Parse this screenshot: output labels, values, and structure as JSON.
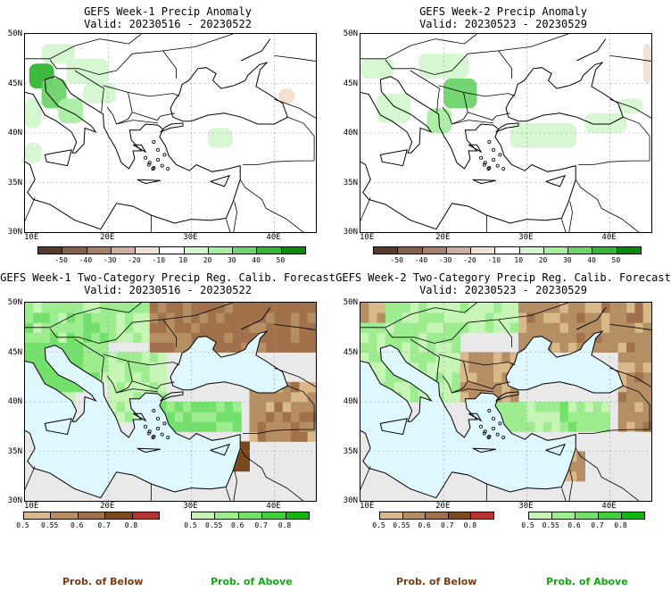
{
  "chart_data": [
    {
      "type": "heatmap",
      "title": "GEFS Week-1 Precip Anomaly",
      "subtitle": "Valid: 20230516 - 20230522",
      "x_ticks": [
        "10E",
        "20E",
        "30E",
        "40E"
      ],
      "y_ticks": [
        "50N",
        "45N",
        "40N",
        "35N",
        "30N"
      ],
      "xlim": [
        10,
        45
      ],
      "ylim": [
        30,
        50
      ],
      "colorbar_ticks": [
        "-50",
        "-40",
        "-30",
        "-20",
        "-10",
        "10",
        "20",
        "30",
        "40",
        "50"
      ],
      "colorbar_colors": [
        "#5a3a2a",
        "#85604a",
        "#a97f6a",
        "#d1ad9d",
        "#f1e0d4",
        "#ffffff",
        "#d4f7d0",
        "#a9eea3",
        "#6ed36a",
        "#33b633",
        "#0a8a0a"
      ],
      "anomaly_regions": [
        {
          "lon": 10.5,
          "lat": 44.5,
          "w": 3,
          "h": 2.5,
          "value": 45
        },
        {
          "lon": 12,
          "lat": 42.5,
          "w": 3,
          "h": 3,
          "value": 35
        },
        {
          "lon": 10,
          "lat": 40.5,
          "w": 2,
          "h": 3,
          "value": 20
        },
        {
          "lon": 14,
          "lat": 41,
          "w": 3,
          "h": 2.5,
          "value": 25
        },
        {
          "lon": 15,
          "lat": 45,
          "w": 5,
          "h": 2.5,
          "value": 15
        },
        {
          "lon": 17,
          "lat": 43,
          "w": 4,
          "h": 2,
          "value": 15
        },
        {
          "lon": 12,
          "lat": 47,
          "w": 4,
          "h": 2,
          "value": 15
        },
        {
          "lon": 10,
          "lat": 37,
          "w": 2,
          "h": 2,
          "value": 15
        },
        {
          "lon": 32,
          "lat": 38.5,
          "w": 3,
          "h": 2,
          "value": 15
        },
        {
          "lon": 40.5,
          "lat": 43,
          "w": 2,
          "h": 1.5,
          "value": -15
        }
      ]
    },
    {
      "type": "heatmap",
      "title": "GEFS Week-2 Precip Anomaly",
      "subtitle": "Valid: 20230523 - 20230529",
      "x_ticks": [
        "10E",
        "20E",
        "30E",
        "40E"
      ],
      "y_ticks": [
        "50N",
        "45N",
        "40N",
        "35N",
        "30N"
      ],
      "xlim": [
        10,
        45
      ],
      "ylim": [
        30,
        50
      ],
      "colorbar_ticks": [
        "-50",
        "-40",
        "-30",
        "-20",
        "-10",
        "10",
        "20",
        "30",
        "40",
        "50"
      ],
      "colorbar_colors": [
        "#5a3a2a",
        "#85604a",
        "#a97f6a",
        "#d1ad9d",
        "#f1e0d4",
        "#ffffff",
        "#d4f7d0",
        "#a9eea3",
        "#6ed36a",
        "#33b633",
        "#0a8a0a"
      ],
      "anomaly_regions": [
        {
          "lon": 10,
          "lat": 45.5,
          "w": 4,
          "h": 2,
          "value": 15
        },
        {
          "lon": 17,
          "lat": 45.5,
          "w": 6,
          "h": 2.5,
          "value": 20
        },
        {
          "lon": 20,
          "lat": 42.5,
          "w": 4,
          "h": 3,
          "value": 35
        },
        {
          "lon": 18,
          "lat": 40,
          "w": 3,
          "h": 2.5,
          "value": 25
        },
        {
          "lon": 12,
          "lat": 41,
          "w": 4,
          "h": 3,
          "value": 20
        },
        {
          "lon": 28,
          "lat": 38.5,
          "w": 8,
          "h": 2.5,
          "value": 15
        },
        {
          "lon": 37,
          "lat": 40,
          "w": 5,
          "h": 2,
          "value": 15
        },
        {
          "lon": 41,
          "lat": 42,
          "w": 3,
          "h": 1.5,
          "value": 15
        },
        {
          "lon": 44,
          "lat": 45,
          "w": 1,
          "h": 4,
          "value": -15
        }
      ]
    },
    {
      "type": "heatmap",
      "title": "GEFS Week-1 Two-Category Precip Reg. Calib. Forecast",
      "subtitle": "Valid: 20230516 - 20230522",
      "x_ticks": [
        "10E",
        "20E",
        "30E",
        "40E"
      ],
      "y_ticks": [
        "50N",
        "45N",
        "40N",
        "35N",
        "30N"
      ],
      "xlim": [
        10,
        45
      ],
      "ylim": [
        30,
        50
      ],
      "below_ticks": [
        "0.5",
        "0.55",
        "0.6",
        "0.7",
        "0.8"
      ],
      "below_colors": [
        "#d9b98a",
        "#b58f63",
        "#a0714a",
        "#7a4a1e",
        "#b83232"
      ],
      "above_ticks": [
        "0.5",
        "0.55",
        "0.6",
        "0.7",
        "0.8"
      ],
      "above_colors": [
        "#c6f5b6",
        "#9ded90",
        "#72e06a",
        "#3fcf3a",
        "#11b611"
      ],
      "below_label": "Prob. of Below",
      "above_label": "Prob. of Above"
    },
    {
      "type": "heatmap",
      "title": "GEFS Week-2 Two-Category Precip Reg. Calib. Forecast",
      "subtitle": "Valid: 20230523 - 20230529",
      "x_ticks": [
        "10E",
        "20E",
        "30E",
        "40E"
      ],
      "y_ticks": [
        "50N",
        "45N",
        "40N",
        "35N",
        "30N"
      ],
      "xlim": [
        10,
        45
      ],
      "ylim": [
        30,
        50
      ],
      "below_ticks": [
        "0.5",
        "0.55",
        "0.6",
        "0.7",
        "0.8"
      ],
      "below_colors": [
        "#d9b98a",
        "#b58f63",
        "#a0714a",
        "#7a4a1e",
        "#b83232"
      ],
      "above_ticks": [
        "0.5",
        "0.55",
        "0.6",
        "0.7",
        "0.8"
      ],
      "above_colors": [
        "#c6f5b6",
        "#9ded90",
        "#72e06a",
        "#3fcf3a",
        "#11b611"
      ],
      "below_label": "Prob. of Below",
      "above_label": "Prob. of Above"
    }
  ]
}
